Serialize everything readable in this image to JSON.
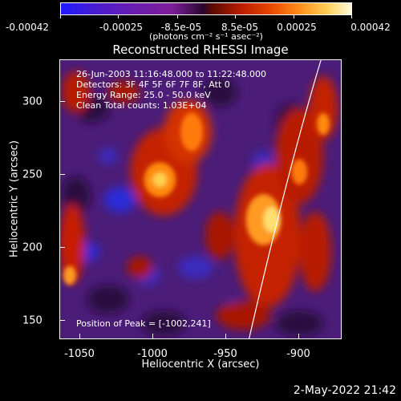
{
  "colorbar": {
    "tick_labels": [
      "-0.00042",
      "-0.00025",
      "-8.5e-05",
      "8.5e-05",
      "0.00025",
      "0.00042"
    ],
    "units": "(photons cm⁻² s⁻¹ asec⁻²)",
    "range": [
      -0.00042,
      0.00042
    ]
  },
  "title": "Reconstructed RHESSI Image",
  "annotations": {
    "time": "26-Jun-2003 11:16:48.000 to 11:22:48.000",
    "detectors": "Detectors: 3F 4F 5F 6F 7F 8F, Att 0",
    "energy": "Energy Range: 25.0 - 50.0 keV",
    "clean": "Clean     Total counts: 1.03E+04",
    "peak": "Position of Peak = [-1002,241]"
  },
  "axes": {
    "xlabel": "Heliocentric X (arcsec)",
    "ylabel": "Heliocentric Y (arcsec)",
    "xticks": [
      "-1050",
      "-1000",
      "-950",
      "-900"
    ],
    "yticks": [
      "300",
      "250",
      "200",
      "150"
    ],
    "xlim": [
      -1065,
      -872
    ],
    "ylim": [
      137,
      325
    ]
  },
  "footer": {
    "timestamp": "2-May-2022 21:42"
  },
  "colors": {
    "background": "#000000",
    "foreground": "#ffffff"
  }
}
